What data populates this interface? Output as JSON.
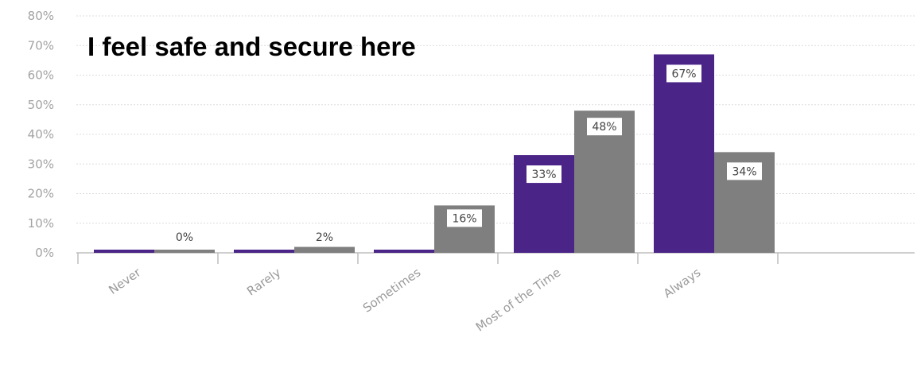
{
  "chart_data": {
    "type": "bar",
    "title": "I feel safe and secure here",
    "categories": [
      "Never",
      "Rarely",
      "Sometimes",
      "Most of the Time",
      "Always"
    ],
    "series": [
      {
        "values": [
          1,
          1,
          1,
          33,
          67
        ],
        "color": "#4b2488",
        "labels": [
          "",
          "",
          "",
          "33%",
          "67%"
        ]
      },
      {
        "values": [
          0,
          2,
          16,
          48,
          34
        ],
        "color": "#7f7f7f",
        "labels": [
          "0%",
          "2%",
          "16%",
          "48%",
          "34%"
        ]
      }
    ],
    "ylim": [
      0,
      80
    ],
    "y_ticks": [
      "0%",
      "10%",
      "20%",
      "30%",
      "40%",
      "50%",
      "60%",
      "70%",
      "80%"
    ],
    "grid": true,
    "xlabel": "",
    "ylabel": ""
  }
}
